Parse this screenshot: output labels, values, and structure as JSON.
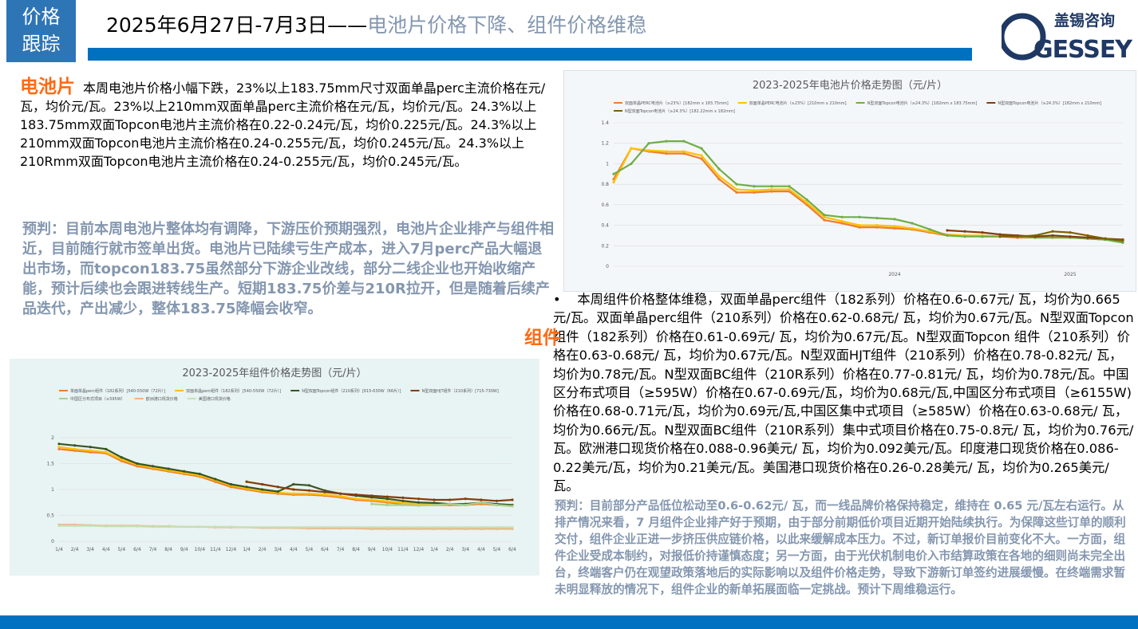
{
  "header": {
    "tag_line1": "价格",
    "tag_line2": "跟踪",
    "title_date": "2025年6月27日-7月3日——",
    "title_subject": "电池片价格下降、组件价格维稳",
    "logo_cn": "盖锡咨询",
    "logo_en": "GESSEY"
  },
  "cell_section": {
    "heading": "电池片",
    "body": "本周电池片价格小幅下跌，23%以上183.75mm尺寸双面单晶perc主流价格在元/瓦，均价元/瓦。23%以上210mm双面单晶perc主流价格在元/瓦，均价元/瓦。24.3%以上183.75mm双面Topcon电池片主流价格在0.22-0.24元/瓦，均价0.225元/瓦。24.3%以上210mm双面Topcon电池片主流价格在0.24-0.255元/瓦，均价0.245元/瓦。24.3%以上210Rmm双面Topcon电池片主流价格在0.24-0.255元/瓦，均价0.245元/瓦。",
    "forecast": "预判：目前本周电池片整体均有调降，下游压价预期强烈，电池片企业排产与组件相近，目前随行就市签单出货。电池片已陆续亏生产成本，进入7月perc产品大幅退出市场，而topcon183.75虽然部分下游企业改线，部分二线企业也开始收缩产能，预计后续也会跟进转线生产。短期183.75价差与210R拉开，但是随着后续产品迭代，产出减少，整体183.75降幅会收窄。"
  },
  "module_section": {
    "heading": "组件",
    "bullet": "•",
    "body": "本周组件价格整体维稳，双面单晶perc组件（182系列）价格在0.6-0.67元/ 瓦，均价为0.665元/瓦。双面单晶perc组件（210系列）价格在0.62-0.68元/ 瓦，均价为0.67元/瓦。N型双面Topcon 组件（182系列）价格在0.61-0.69元/ 瓦，均价为0.67元/瓦。N型双面Topcon 组件（210系列）价格在0.63-0.68元/ 瓦，均价为0.67元/瓦。N型双面HJT组件（210系列）价格在0.78-0.82元/ 瓦，均价为0.78元/瓦。N型双面BC组件（210R系列）价格在0.77-0.81元/ 瓦，均价为0.78元/瓦。中国区分布式项目（≥595W）价格在0.67-0.69元/瓦，均价为0.68元/瓦,中国区分布式项目（≥6155W)价格在0.68-0.71元/瓦，均价为0.69元/瓦,中国区集中式项目（≥585W）价格在0.63-0.68元/ 瓦，均价为0.66元/瓦。N型双面BC组件（210R系列）集中式项目价格在0.75-0.8元/ 瓦，均价为0.76元/瓦。欧洲港口现货价格在0.088-0.96美元/ 瓦，均价为0.092美元/瓦。印度港口现货价格在0.086-0.22美元/瓦，均价为0.21美元/瓦。美国港口现货价格在0.26-0.28美元/ 瓦，均价为0.265美元/瓦。",
    "forecast": "预判：目前部分产品低位松动至0.6-0.62元/ 瓦，而一线品牌价格保持稳定，维持在 0.65 元/瓦左右运行。从排产情况来看，7 月组件企业排产好于预期，由于部分前期低价项目近期开始陆续执行。为保障这些订单的顺利交付，组件企业正进一步挤压供应链价格，以此来缓解成本压力。不过，新订单报价目前变化不大。一方面，组件企业受成本制约，对报低价持谨慎态度；另一方面，由于光伏机制电价入市结算政策在各地的细则尚未完全出台，终端客户仍在观望政策落地后的实际影响以及组件价格走势，导致下游新订单签约进展缓慢。在终端需求暂未明显释放的情况下，组件企业的新单拓展面临一定挑战。预计下周维稳运行。"
  },
  "chart_data": [
    {
      "type": "line",
      "title": "2023-2025年电池片价格走势图（元/片）",
      "categories": [
        null,
        null,
        null,
        null,
        null,
        null,
        null,
        null,
        null,
        null,
        null,
        null,
        null,
        null,
        null,
        null,
        "2024",
        null,
        null,
        null,
        null,
        null,
        null,
        null,
        null,
        null,
        "2025",
        null,
        null,
        null
      ],
      "ylim": [
        0,
        1.4
      ],
      "yticks": [
        0,
        0.2,
        0.4,
        0.6,
        0.8,
        1,
        1.2,
        1.4
      ],
      "grid": true,
      "legend": "top",
      "series": [
        {
          "name": "双面单晶PERC电池片（≥23%）[182mm x 183.75mm]",
          "color": "#ed7d31",
          "values": [
            0.85,
            1.15,
            1.12,
            1.1,
            1.1,
            1.05,
            0.85,
            0.72,
            0.72,
            0.73,
            0.73,
            0.6,
            0.45,
            0.42,
            0.38,
            0.38,
            0.37,
            0.36,
            0.33,
            0.3,
            0.3,
            0.29,
            0.29,
            0.28,
            0.28,
            0.28,
            0.28,
            0.27,
            0.26,
            0.25
          ]
        },
        {
          "name": "双面单晶PERC电池片（≥23%）[210mm x 210mm]",
          "color": "#ffc000",
          "values": [
            0.82,
            1.15,
            1.13,
            1.12,
            1.12,
            1.08,
            0.88,
            0.75,
            0.74,
            0.75,
            0.75,
            0.62,
            0.48,
            0.44,
            0.4,
            0.4,
            0.39,
            0.37,
            0.34,
            0.31,
            0.3,
            0.3,
            0.29,
            0.29,
            0.29,
            0.28,
            0.28,
            0.28,
            0.27,
            0.26
          ]
        },
        {
          "name": "N型双面Topcon电池片（≥24.3%）[182mm x 183.75mm]",
          "color": "#70ad47",
          "values": [
            0.9,
            1.0,
            1.2,
            1.22,
            1.22,
            1.15,
            0.95,
            0.8,
            0.78,
            0.78,
            0.78,
            0.65,
            0.5,
            0.48,
            0.48,
            0.47,
            0.46,
            0.42,
            0.36,
            0.3,
            0.29,
            0.29,
            0.29,
            0.29,
            0.28,
            0.28,
            0.28,
            0.27,
            0.26,
            0.23
          ]
        },
        {
          "name": "N型双面Topcon电池片（≥24.3%）[182mm x 210mm]",
          "color": "#843c0c",
          "values": [
            null,
            null,
            null,
            null,
            null,
            null,
            null,
            null,
            null,
            null,
            null,
            null,
            null,
            null,
            null,
            null,
            null,
            null,
            null,
            0.35,
            0.34,
            0.33,
            0.31,
            0.3,
            0.29,
            0.3,
            0.29,
            0.28,
            0.27,
            0.26
          ]
        },
        {
          "name": "N型双面Topcon电池片（≥24.3%）[182.22mm x 182mm]",
          "color": "#7f6000",
          "values": [
            null,
            null,
            null,
            null,
            null,
            null,
            null,
            null,
            null,
            null,
            null,
            null,
            null,
            null,
            null,
            null,
            null,
            null,
            null,
            null,
            null,
            null,
            0.29,
            0.29,
            0.3,
            0.34,
            0.33,
            0.3,
            0.27,
            0.25
          ]
        }
      ]
    },
    {
      "type": "line",
      "title": "2023-2025年组件价格走势图（元/片）",
      "categories": [
        "1/4",
        "2/4",
        "3/4",
        "4/4",
        "5/4",
        "6/4",
        "7/4",
        "8/4",
        "9/4",
        "10/4",
        "11/4",
        "12/4",
        "1/4",
        "2/4",
        "3/4",
        "4/4",
        "5/4",
        "6/4",
        "7/4",
        "8/4",
        "9/4",
        "10/4",
        "11/4",
        "12/4",
        "1/4",
        "2/4",
        "3/4",
        "4/4",
        "5/4",
        "6/4"
      ],
      "ylim": [
        0,
        2
      ],
      "yticks": [
        0,
        0.5,
        1,
        1.5,
        2
      ],
      "grid": true,
      "legend": "top",
      "series": [
        {
          "name": "单面单晶perc组件（182系列）[540-550W（72片）]",
          "color": "#ed7d31",
          "values": [
            1.78,
            1.75,
            1.72,
            1.7,
            1.55,
            1.45,
            1.4,
            1.35,
            1.3,
            1.25,
            1.15,
            1.05,
            1.0,
            0.95,
            0.92,
            0.9,
            0.9,
            0.88,
            0.85,
            0.8,
            0.78,
            0.75,
            0.72,
            0.7,
            0.7,
            0.7,
            0.7,
            0.72,
            0.7,
            0.68
          ]
        },
        {
          "name": "双面单晶perc组件（182系列）[540-550W（72片）]",
          "color": "#ffc000",
          "values": [
            1.82,
            1.78,
            1.75,
            1.72,
            1.58,
            1.48,
            1.42,
            1.37,
            1.32,
            1.27,
            1.18,
            1.08,
            1.02,
            0.97,
            0.94,
            0.92,
            0.92,
            0.9,
            0.87,
            0.82,
            0.8,
            0.77,
            0.74,
            0.72,
            0.72,
            0.72,
            0.72,
            0.74,
            0.72,
            0.7
          ]
        },
        {
          "name": "N型双面Topcon组件（210系列）[615-630W（66片）]",
          "color": "#375623",
          "values": [
            1.88,
            1.85,
            1.82,
            1.78,
            1.62,
            1.5,
            1.45,
            1.4,
            1.35,
            1.3,
            1.2,
            1.1,
            1.05,
            1.0,
            0.96,
            1.1,
            1.08,
            0.98,
            0.92,
            0.88,
            0.85,
            0.82,
            0.78,
            0.75,
            0.74,
            0.72,
            0.72,
            0.75,
            0.72,
            0.7
          ]
        },
        {
          "name": "N型双面HJT组件（210系列）[715-730W]",
          "color": "#843c0c",
          "values": [
            null,
            null,
            null,
            null,
            null,
            null,
            null,
            null,
            null,
            null,
            null,
            null,
            1.15,
            1.1,
            1.05,
            1.0,
            0.98,
            0.95,
            0.92,
            0.9,
            0.88,
            0.86,
            0.84,
            0.82,
            0.8,
            0.8,
            0.82,
            0.8,
            0.78,
            0.8
          ]
        },
        {
          "name": "中国区分布式项目（≥595W）",
          "color": "#a9d18e",
          "values": [
            null,
            null,
            null,
            null,
            null,
            null,
            null,
            null,
            null,
            null,
            null,
            null,
            null,
            null,
            null,
            null,
            null,
            null,
            null,
            null,
            0.72,
            0.7,
            0.7,
            0.69,
            0.7,
            0.72,
            0.7,
            0.75,
            0.7,
            0.68
          ]
        },
        {
          "name": "欧洲港口现货价格",
          "color": "#f4b183",
          "values": [
            0.32,
            0.32,
            0.31,
            0.3,
            0.3,
            0.3,
            0.29,
            0.29,
            0.28,
            0.28,
            0.27,
            0.27,
            0.27,
            0.26,
            0.26,
            0.26,
            0.25,
            0.25,
            0.25,
            0.25,
            0.24,
            0.24,
            0.24,
            0.24,
            0.24,
            0.24,
            0.24,
            0.24,
            0.24,
            0.24
          ]
        },
        {
          "name": "美国港口现货价格",
          "color": "#c5e0b4",
          "values": [
            0.3,
            0.3,
            0.3,
            0.29,
            0.29,
            0.29,
            0.28,
            0.28,
            0.28,
            0.28,
            0.28,
            0.28,
            0.27,
            0.27,
            0.27,
            0.27,
            0.27,
            0.27,
            0.27,
            0.27,
            0.27,
            0.27,
            0.27,
            0.27,
            0.27,
            0.27,
            0.27,
            0.27,
            0.27,
            0.27
          ]
        }
      ]
    }
  ]
}
